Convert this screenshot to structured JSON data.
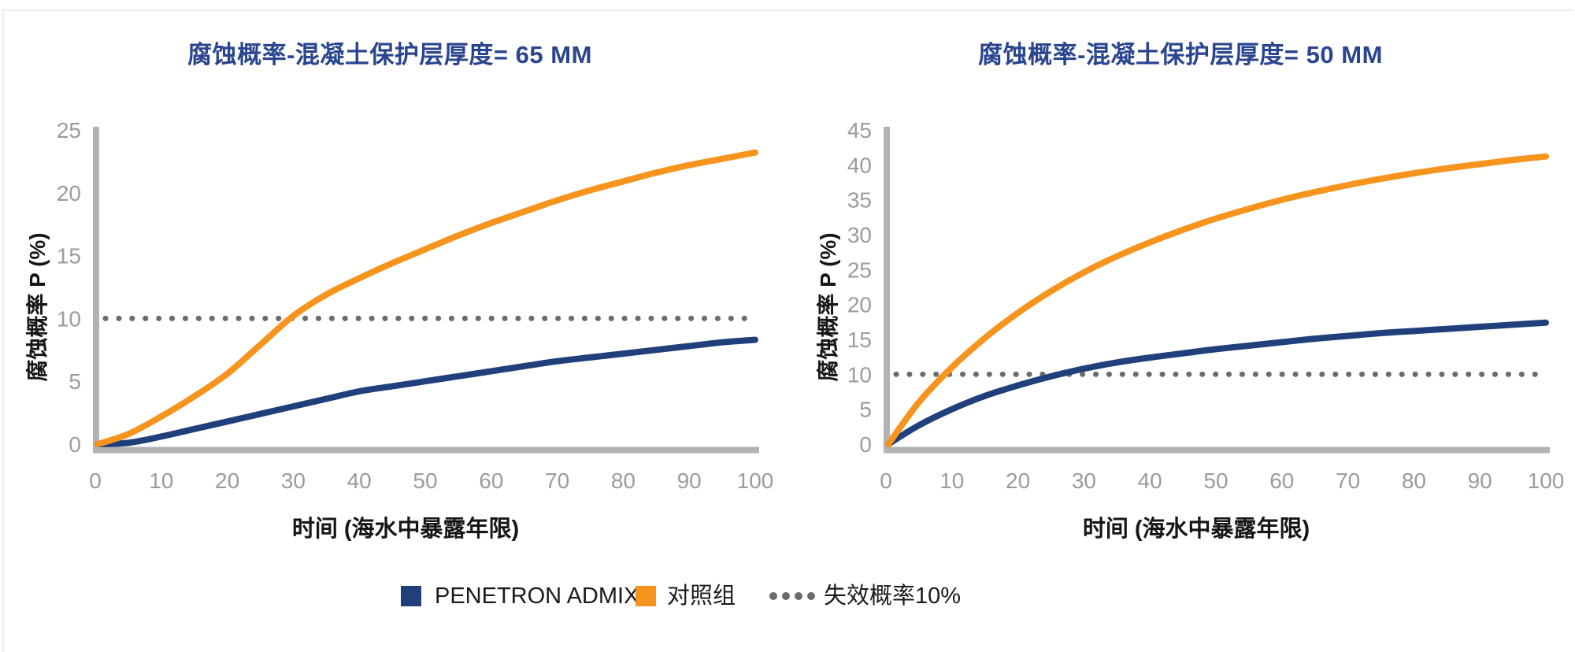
{
  "colors": {
    "background": "#FFFFFF",
    "title": "#2A458F",
    "navy": "#20407C",
    "orange": "#F7941E",
    "axis": "#B2B2B2",
    "tick_text": "#9B9B9B",
    "threshold_dots": "#6B6B6B",
    "text": "#1A1A1A",
    "border_line": "#ECECEC"
  },
  "chart_data": [
    {
      "type": "line",
      "title": "腐蚀概率-混凝土保护层厚度= 65 MM",
      "ylabel": "腐蚀概率 P (%)",
      "xlabel": "时间 (海水中暴露年限)",
      "xlim": [
        0,
        100
      ],
      "ylim": [
        0,
        25
      ],
      "x_ticks": [
        0,
        10,
        20,
        30,
        40,
        50,
        60,
        70,
        80,
        90,
        100
      ],
      "y_ticks": [
        0,
        5,
        10,
        15,
        20,
        25
      ],
      "grid": false,
      "x": [
        0,
        5,
        10,
        15,
        20,
        25,
        30,
        35,
        40,
        45,
        50,
        55,
        60,
        65,
        70,
        75,
        80,
        85,
        90,
        95,
        100
      ],
      "series": [
        {
          "name": "PENETRON ADMIX",
          "color": "#20407C",
          "values": [
            0,
            0.1,
            0.6,
            1.2,
            1.8,
            2.4,
            3.0,
            3.6,
            4.2,
            4.6,
            5.0,
            5.4,
            5.8,
            6.2,
            6.6,
            6.9,
            7.2,
            7.5,
            7.8,
            8.1,
            8.3
          ]
        },
        {
          "name": "对照组",
          "color": "#F7941E",
          "values": [
            0,
            0.8,
            2.2,
            3.8,
            5.6,
            7.9,
            10.2,
            11.9,
            13.2,
            14.4,
            15.5,
            16.6,
            17.6,
            18.5,
            19.4,
            20.2,
            20.9,
            21.6,
            22.2,
            22.7,
            23.2
          ]
        }
      ],
      "threshold": {
        "label": "失效概率10%",
        "value": 10,
        "color": "#6B6B6B"
      }
    },
    {
      "type": "line",
      "title": "腐蚀概率-混凝土保护层厚度= 50 MM",
      "ylabel": "腐蚀概率 P (%)",
      "xlabel": "时间 (海水中暴露年限)",
      "xlim": [
        0,
        100
      ],
      "ylim": [
        0,
        45
      ],
      "x_ticks": [
        0,
        10,
        20,
        30,
        40,
        50,
        60,
        70,
        80,
        90,
        100
      ],
      "y_ticks": [
        0,
        5,
        10,
        15,
        20,
        25,
        30,
        35,
        40,
        45
      ],
      "grid": false,
      "x": [
        0,
        5,
        10,
        15,
        20,
        25,
        30,
        35,
        40,
        45,
        50,
        55,
        60,
        65,
        70,
        75,
        80,
        85,
        90,
        95,
        100
      ],
      "series": [
        {
          "name": "PENETRON ADMIX",
          "color": "#20407C",
          "values": [
            0,
            2.7,
            5.0,
            6.9,
            8.4,
            9.7,
            10.8,
            11.7,
            12.4,
            13.0,
            13.6,
            14.1,
            14.6,
            15.1,
            15.5,
            15.9,
            16.2,
            16.5,
            16.8,
            17.1,
            17.4
          ]
        },
        {
          "name": "对照组",
          "color": "#F7941E",
          "values": [
            0,
            6.0,
            11.0,
            15.2,
            18.8,
            21.9,
            24.6,
            26.9,
            28.9,
            30.7,
            32.3,
            33.7,
            35.0,
            36.1,
            37.1,
            38.0,
            38.8,
            39.5,
            40.1,
            40.7,
            41.2
          ]
        }
      ],
      "threshold": {
        "label": "失效概率10%",
        "value": 10,
        "color": "#6B6B6B"
      }
    }
  ],
  "legend": {
    "items": [
      {
        "label": "PENETRON ADMIX",
        "swatch": "square",
        "color": "#20407C"
      },
      {
        "label": "对照组",
        "swatch": "square",
        "color": "#F7941E"
      },
      {
        "label": "失效概率10%",
        "swatch": "dotted",
        "color": "#6B6B6B"
      }
    ]
  }
}
